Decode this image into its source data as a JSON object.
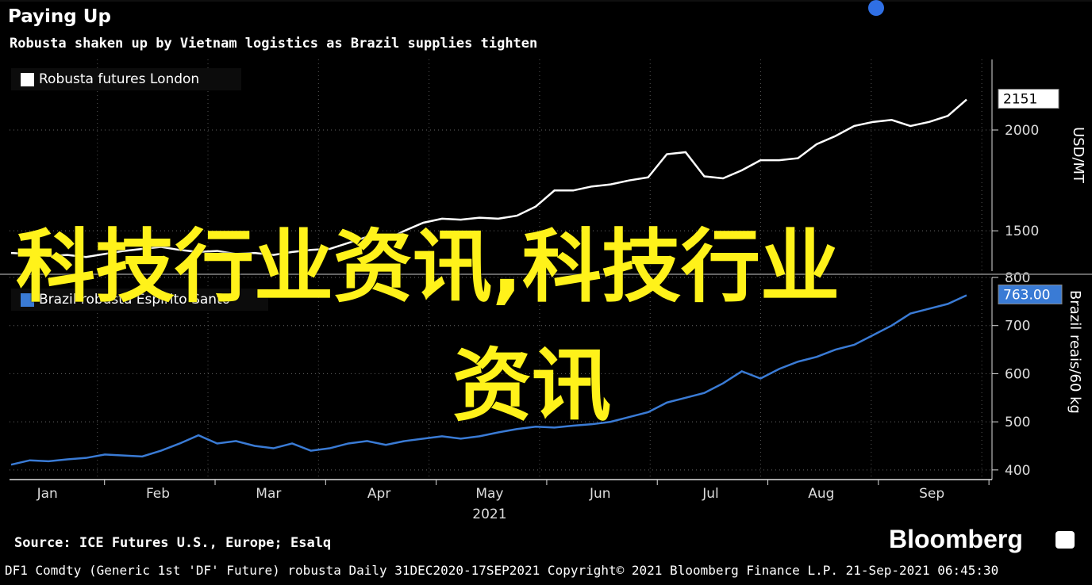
{
  "header": {
    "title": "Paying Up",
    "subtitle": "Robusta shaken up by Vietnam logistics as Brazil supplies tighten"
  },
  "overlay": {
    "line1": "科技行业资讯,科技行业",
    "line2": "资讯"
  },
  "footer": {
    "source": "Source: ICE Futures U.S., Europe; Esalq",
    "brand": "Bloomberg",
    "meta": "DF1 Comdty (Generic 1st 'DF' Future) robusta  Daily 31DEC2020-17SEP2021  Copyright© 2021 Bloomberg Finance L.P.  21-Sep-2021 06:45:30"
  },
  "colors": {
    "top_series": "#ffffff",
    "bottom_series": "#3a7bd5",
    "overlay_text": "#fff21a",
    "accent_dot": "#2f6fe4"
  },
  "chart_data": [
    {
      "type": "line",
      "series": [
        {
          "name": "Robusta futures London",
          "values": [
            1390,
            1385,
            1375,
            1380,
            1370,
            1385,
            1400,
            1410,
            1420,
            1405,
            1395,
            1400,
            1385,
            1390,
            1380,
            1395,
            1405,
            1410,
            1440,
            1470,
            1455,
            1500,
            1540,
            1560,
            1555,
            1565,
            1560,
            1575,
            1620,
            1700,
            1700,
            1720,
            1730,
            1750,
            1765,
            1880,
            1890,
            1770,
            1760,
            1800,
            1850,
            1850,
            1860,
            1930,
            1970,
            2020,
            2040,
            2050,
            2020,
            2040,
            2070,
            2151
          ]
        }
      ],
      "ylabel": "USD/MT",
      "ylim": [
        1300,
        2350
      ],
      "yticks": [
        "1500",
        "2000"
      ],
      "last_value_label": "2151",
      "grid": true,
      "legend": "top-left"
    },
    {
      "type": "line",
      "series": [
        {
          "name": "Brazil robusta Espirito Santo",
          "values": [
            411,
            420,
            418,
            422,
            425,
            432,
            430,
            428,
            440,
            455,
            472,
            455,
            460,
            450,
            445,
            455,
            440,
            445,
            455,
            460,
            452,
            460,
            465,
            470,
            465,
            470,
            478,
            485,
            490,
            488,
            492,
            495,
            500,
            510,
            520,
            540,
            550,
            560,
            580,
            605,
            590,
            610,
            625,
            635,
            650,
            660,
            680,
            700,
            725,
            735,
            745,
            763
          ]
        }
      ],
      "ylabel": "Brazil reais/60 kg",
      "ylim": [
        380,
        800
      ],
      "yticks": [
        "400",
        "500",
        "600",
        "700",
        "800"
      ],
      "last_value_label": "763.00",
      "grid": true,
      "legend": "top-left"
    }
  ],
  "x_axis": {
    "months": [
      "Jan",
      "Feb",
      "Mar",
      "Apr",
      "May",
      "Jun",
      "Jul",
      "Aug",
      "Sep"
    ],
    "year": "2021"
  }
}
